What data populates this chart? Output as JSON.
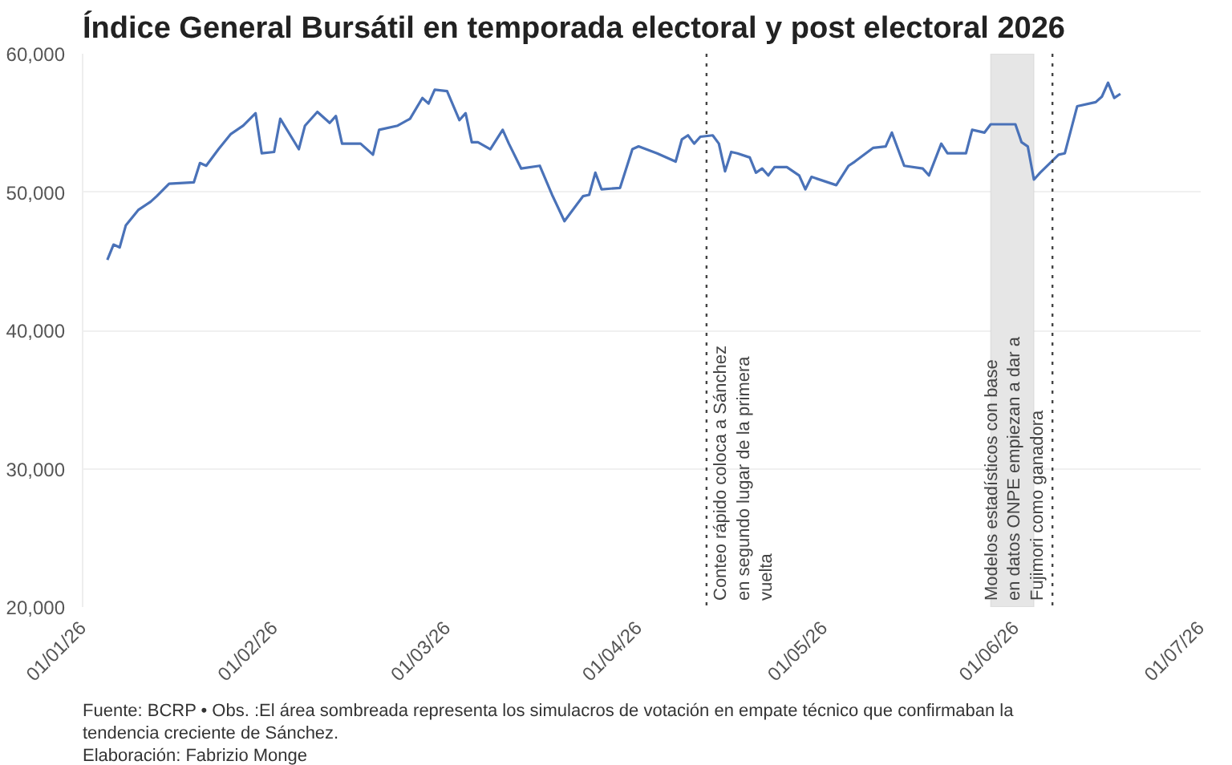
{
  "chart_data": {
    "type": "line",
    "title": "Índice General Bursátil en temporada electoral y post electoral 2026",
    "x": [
      "2026-01-05",
      "2026-01-06",
      "2026-01-07",
      "2026-01-08",
      "2026-01-10",
      "2026-01-12",
      "2026-01-13",
      "2026-01-15",
      "2026-01-19",
      "2026-01-20",
      "2026-01-21",
      "2026-01-23",
      "2026-01-25",
      "2026-01-27",
      "2026-01-29",
      "2026-01-30",
      "2026-02-01",
      "2026-02-02",
      "2026-02-05",
      "2026-02-06",
      "2026-02-08",
      "2026-02-10",
      "2026-02-11",
      "2026-02-12",
      "2026-02-15",
      "2026-02-17",
      "2026-02-18",
      "2026-02-21",
      "2026-02-23",
      "2026-02-25",
      "2026-02-26",
      "2026-02-27",
      "2026-03-01",
      "2026-03-03",
      "2026-03-04",
      "2026-03-05",
      "2026-03-06",
      "2026-03-08",
      "2026-03-10",
      "2026-03-11",
      "2026-03-13",
      "2026-03-16",
      "2026-03-18",
      "2026-03-20",
      "2026-03-23",
      "2026-03-24",
      "2026-03-25",
      "2026-03-26",
      "2026-03-29",
      "2026-03-31",
      "2026-04-01",
      "2026-04-04",
      "2026-04-07",
      "2026-04-08",
      "2026-04-09",
      "2026-04-10",
      "2026-04-11",
      "2026-04-13",
      "2026-04-14",
      "2026-04-15",
      "2026-04-16",
      "2026-04-17",
      "2026-04-19",
      "2026-04-20",
      "2026-04-21",
      "2026-04-22",
      "2026-04-23",
      "2026-04-25",
      "2026-04-27",
      "2026-04-28",
      "2026-04-29",
      "2026-05-03",
      "2026-05-05",
      "2026-05-06",
      "2026-05-09",
      "2026-05-11",
      "2026-05-12",
      "2026-05-14",
      "2026-05-17",
      "2026-05-18",
      "2026-05-20",
      "2026-05-21",
      "2026-05-24",
      "2026-05-25",
      "2026-05-27",
      "2026-05-28",
      "2026-06-01",
      "2026-06-02",
      "2026-06-03",
      "2026-06-04",
      "2026-06-05",
      "2026-06-08",
      "2026-06-09",
      "2026-06-11",
      "2026-06-14",
      "2026-06-15",
      "2026-06-16",
      "2026-06-17",
      "2026-06-18"
    ],
    "series": [
      {
        "color": "#4a72b8",
        "values": [
          45100,
          46200,
          46000,
          47600,
          48700,
          49300,
          49700,
          50600,
          50700,
          52100,
          51900,
          53100,
          54200,
          54800,
          55700,
          52800,
          52900,
          55300,
          53100,
          54800,
          55800,
          55000,
          55500,
          53500,
          53500,
          52700,
          54500,
          54800,
          55300,
          56800,
          56400,
          57400,
          57300,
          55200,
          55700,
          53600,
          53600,
          53100,
          54500,
          53500,
          51700,
          51900,
          49800,
          47900,
          49700,
          49800,
          51400,
          50200,
          50300,
          53100,
          53300,
          52800,
          52200,
          53800,
          54100,
          53500,
          54000,
          54100,
          53500,
          51500,
          52900,
          52800,
          52500,
          51400,
          51700,
          51200,
          51800,
          51800,
          51200,
          50200,
          51100,
          50500,
          51900,
          52200,
          53200,
          53300,
          54300,
          51900,
          51700,
          51200,
          53500,
          52800,
          52800,
          54500,
          54300,
          54900,
          54900,
          53600,
          53300,
          50900,
          51400,
          52700,
          52800,
          56200,
          56500,
          56900,
          57900,
          56800,
          57100
        ]
      }
    ],
    "xlim": [
      "2026-01-01",
      "2026-07-01"
    ],
    "xticks": [
      {
        "value": "2026-01-01",
        "label": "01/01/26"
      },
      {
        "value": "2026-02-01",
        "label": "01/02/26"
      },
      {
        "value": "2026-03-01",
        "label": "01/03/26"
      },
      {
        "value": "2026-04-01",
        "label": "01/04/26"
      },
      {
        "value": "2026-05-01",
        "label": "01/05/26"
      },
      {
        "value": "2026-06-01",
        "label": "01/06/26"
      },
      {
        "value": "2026-07-01",
        "label": "01/07/26"
      }
    ],
    "ylim": [
      20000,
      60000
    ],
    "yticks": [
      {
        "value": 20000,
        "label": "20,000"
      },
      {
        "value": 30000,
        "label": "30,000"
      },
      {
        "value": 40000,
        "label": "40,000"
      },
      {
        "value": 50000,
        "label": "50,000"
      },
      {
        "value": 60000,
        "label": "60,000"
      }
    ],
    "grid": "y",
    "marker": "none",
    "line_style": "solid",
    "ref_lines": [
      {
        "axis": "x",
        "value": "2026-04-12",
        "label": "Conteo rápido coloca a Sánchez en segundo lugar de la primera vuelta",
        "color": "#444444",
        "line_style": "dotted"
      },
      {
        "axis": "x",
        "value": "2026-06-07",
        "label": "Modelos estadísticos con base en datos ONPE empiezan a dar a Fujimori como ganadora",
        "color": "#444444",
        "line_style": "dotted"
      }
    ],
    "bands": [
      {
        "axis": "x",
        "from": "2026-05-28",
        "to": "2026-06-04",
        "color": "#e6e6e6"
      }
    ],
    "annotations": [
      "Fuente: BCRP • Obs. :El área sombreada representa los simulacros de votación en empate técnico que confirmaban la tendencia creciente de Sánchez.",
      "Elaboración: Fabrizio Monge"
    ]
  }
}
